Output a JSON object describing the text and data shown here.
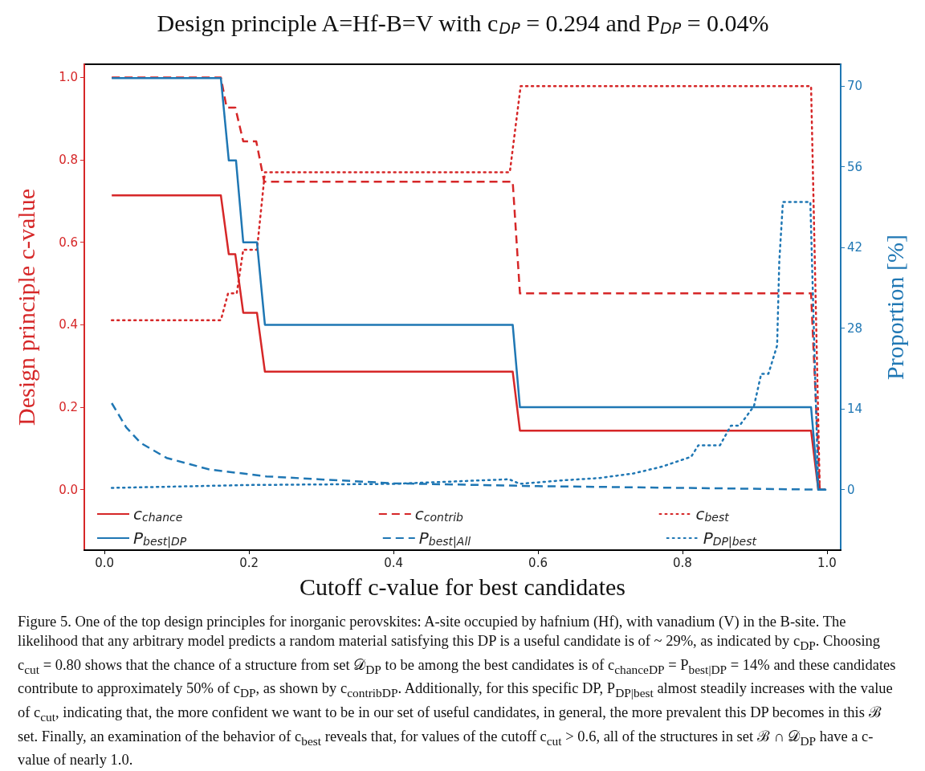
{
  "chart_data": {
    "type": "line",
    "title": "Design principle A=Hf-B=V with c$_{DP}$ = 0.294 and P$_{DP}$ = 0.04%",
    "xlabel": "Cutoff c-value for best candidates",
    "ylabel": "Design principle c-value",
    "y2label": "Proportion [%]",
    "xlim": [
      -0.028,
      1.019
    ],
    "xticks": [
      {
        "value": 0,
        "label": "0.0"
      },
      0.2,
      0.4,
      0.6,
      0.8,
      {
        "value": 1,
        "label": "1.0"
      }
    ],
    "ylim": [
      -0.147,
      1.032
    ],
    "yticks": [
      {
        "value": 0,
        "label": "0.0"
      },
      0.2,
      0.4,
      0.6,
      0.8,
      {
        "value": 1,
        "label": "1.0"
      }
    ],
    "y2lim": [
      -10.5,
      73.8
    ],
    "y2ticks": [
      0,
      14,
      28,
      42,
      56,
      70
    ],
    "legend": "bottom",
    "grid": false,
    "series": [
      {
        "name": "c$_{chance}$",
        "color": "#d62728",
        "line_style": "solid",
        "axis": "y",
        "x": [
          0.01,
          0.161,
          0.172,
          0.181,
          0.192,
          0.211,
          0.222,
          0.565,
          0.575,
          0.978,
          0.988,
          0.998
        ],
        "values": [
          0.714,
          0.714,
          0.571,
          0.571,
          0.429,
          0.429,
          0.286,
          0.286,
          0.143,
          0.143,
          0,
          0
        ]
      },
      {
        "name": "c$_{contrib}$",
        "color": "#d62728",
        "line_style": "dashed",
        "axis": "y",
        "x": [
          0.01,
          0.161,
          0.169,
          0.181,
          0.192,
          0.21,
          0.221,
          0.565,
          0.575,
          0.978,
          0.99
        ],
        "values": [
          1.0,
          1.0,
          0.927,
          0.927,
          0.845,
          0.845,
          0.747,
          0.747,
          0.476,
          0.476,
          0
        ]
      },
      {
        "name": "c$_{best}$",
        "color": "#d62728",
        "line_style": "dotted",
        "axis": "y",
        "x": [
          0.01,
          0.161,
          0.171,
          0.183,
          0.192,
          0.211,
          0.222,
          0.561,
          0.576,
          0.978,
          0.99
        ],
        "values": [
          0.411,
          0.411,
          0.476,
          0.476,
          0.582,
          0.582,
          0.77,
          0.77,
          0.979,
          0.979,
          0
        ]
      },
      {
        "name": "P$_{best|DP}$",
        "color": "#1f77b4",
        "line_style": "solid",
        "axis": "y2",
        "x": [
          0.01,
          0.161,
          0.172,
          0.182,
          0.192,
          0.211,
          0.222,
          0.565,
          0.575,
          0.978,
          0.988,
          0.998
        ],
        "values": [
          71.4,
          71.4,
          57.1,
          57.1,
          42.9,
          42.9,
          28.6,
          28.6,
          14.3,
          14.3,
          0,
          0
        ]
      },
      {
        "name": "P$_{best|All}$",
        "color": "#1f77b4",
        "line_style": "dashed",
        "axis": "y2",
        "x": [
          0.01,
          0.03,
          0.05,
          0.086,
          0.145,
          0.224,
          0.296,
          0.4,
          0.6,
          0.8,
          0.99,
          1.0
        ],
        "values": [
          15.0,
          10.8,
          8.1,
          5.5,
          3.5,
          2.3,
          1.8,
          1.1,
          0.6,
          0.3,
          0,
          0
        ]
      },
      {
        "name": "P$_{DP|best}$",
        "color": "#1f77b4",
        "line_style": "dotted",
        "axis": "y2",
        "x": [
          0.01,
          0.2,
          0.4,
          0.56,
          0.575,
          0.633,
          0.684,
          0.732,
          0.772,
          0.812,
          0.822,
          0.852,
          0.867,
          0.879,
          0.899,
          0.909,
          0.919,
          0.931,
          0.934,
          0.939,
          0.977,
          0.988,
          0.998
        ],
        "values": [
          0.3,
          0.8,
          1.0,
          1.8,
          1.0,
          1.6,
          2.0,
          2.8,
          4.0,
          5.7,
          7.7,
          7.7,
          11.1,
          11.1,
          14.5,
          20.1,
          20.1,
          25.0,
          39.6,
          49.9,
          49.9,
          0,
          0
        ]
      }
    ],
    "annotations": [
      "Figure 5. One of the top design principles for inorganic perovskites: A-site occupied by hafnium (Hf), with vanadium (V) in the B-site. The likelihood that any arbitrary model predicts a random material satisfying this DP is a useful candidate is of ~ 29%, as indicated by c$_{DP}$. Choosing c$_{cut}$ = 0.80 shows that the chance of a structure from set 𝒟$_{DP}$ to be among the best candidates is of c$_{chanceDP}$ = P$_{best|DP}$ = 14% and these candidates contribute to approximately 50% of c$_{DP}$, as shown by c$_{contribDP}$. Additionally, for this specific DP, P$_{DP|best}$ almost steadily increases with the value of c$_{cut}$, indicating that, the more confident we want to be in our set of useful candidates, in general, the more prevalent this DP becomes in this ℬ set. Finally, an examination of the behavior of c$_{best}$ reveals that, for values of the cutoff c$_{cut}$ > 0.6, all of the structures in set ℬ ∩ 𝒟$_{DP}$ have a c-value of nearly 1.0."
    ]
  }
}
